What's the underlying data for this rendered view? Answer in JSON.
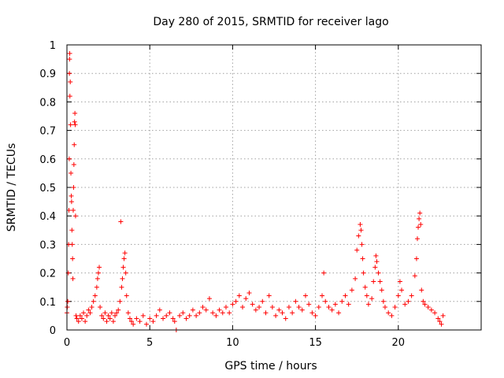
{
  "chart_data": {
    "type": "scatter",
    "title": "Day 280 of 2015, SRMTID for receiver lago",
    "xlabel": "GPS time / hours",
    "ylabel": "SRMTID / TECUs",
    "xlim": [
      0,
      25
    ],
    "ylim": [
      0,
      1
    ],
    "xticks": [
      0,
      5,
      10,
      15,
      20
    ],
    "xtick_labels": [
      "0",
      "5",
      "10",
      "15",
      "20"
    ],
    "yticks": [
      0,
      0.1,
      0.2,
      0.3,
      0.4,
      0.5,
      0.6,
      0.7,
      0.8,
      0.9,
      1
    ],
    "ytick_labels": [
      "0",
      "0.1",
      "0.2",
      "0.3",
      "0.4",
      "0.5",
      "0.6",
      "0.7",
      "0.8",
      "0.9",
      "1"
    ],
    "grid": true,
    "marker": "+",
    "series": [
      {
        "name": "SRMTID",
        "color": "#ff0000",
        "points": [
          [
            0.0,
            0.06
          ],
          [
            0.02,
            0.08
          ],
          [
            0.05,
            0.1
          ],
          [
            0.08,
            0.2
          ],
          [
            0.1,
            0.3
          ],
          [
            0.12,
            0.42
          ],
          [
            0.14,
            0.6
          ],
          [
            0.15,
            0.9
          ],
          [
            0.16,
            0.95
          ],
          [
            0.17,
            0.97
          ],
          [
            0.18,
            0.82
          ],
          [
            0.2,
            0.87
          ],
          [
            0.22,
            0.72
          ],
          [
            0.24,
            0.55
          ],
          [
            0.26,
            0.47
          ],
          [
            0.28,
            0.45
          ],
          [
            0.3,
            0.35
          ],
          [
            0.32,
            0.3
          ],
          [
            0.34,
            0.25
          ],
          [
            0.36,
            0.18
          ],
          [
            0.38,
            0.42
          ],
          [
            0.4,
            0.5
          ],
          [
            0.42,
            0.58
          ],
          [
            0.44,
            0.65
          ],
          [
            0.46,
            0.73
          ],
          [
            0.48,
            0.76
          ],
          [
            0.5,
            0.72
          ],
          [
            0.52,
            0.4
          ],
          [
            0.55,
            0.05
          ],
          [
            0.6,
            0.04
          ],
          [
            0.7,
            0.03
          ],
          [
            0.8,
            0.05
          ],
          [
            0.9,
            0.04
          ],
          [
            1.0,
            0.06
          ],
          [
            1.1,
            0.03
          ],
          [
            1.2,
            0.05
          ],
          [
            1.3,
            0.07
          ],
          [
            1.4,
            0.06
          ],
          [
            1.5,
            0.08
          ],
          [
            1.6,
            0.1
          ],
          [
            1.7,
            0.12
          ],
          [
            1.8,
            0.15
          ],
          [
            1.85,
            0.18
          ],
          [
            1.9,
            0.2
          ],
          [
            1.95,
            0.22
          ],
          [
            2.0,
            0.08
          ],
          [
            2.1,
            0.05
          ],
          [
            2.2,
            0.04
          ],
          [
            2.3,
            0.06
          ],
          [
            2.4,
            0.03
          ],
          [
            2.5,
            0.05
          ],
          [
            2.6,
            0.04
          ],
          [
            2.7,
            0.06
          ],
          [
            2.8,
            0.03
          ],
          [
            2.9,
            0.05
          ],
          [
            3.0,
            0.06
          ],
          [
            3.1,
            0.07
          ],
          [
            3.2,
            0.1
          ],
          [
            3.25,
            0.38
          ],
          [
            3.3,
            0.15
          ],
          [
            3.35,
            0.18
          ],
          [
            3.4,
            0.22
          ],
          [
            3.45,
            0.25
          ],
          [
            3.5,
            0.27
          ],
          [
            3.55,
            0.2
          ],
          [
            3.6,
            0.12
          ],
          [
            3.7,
            0.06
          ],
          [
            3.8,
            0.04
          ],
          [
            3.9,
            0.03
          ],
          [
            4.0,
            0.02
          ],
          [
            4.2,
            0.04
          ],
          [
            4.4,
            0.03
          ],
          [
            4.6,
            0.05
          ],
          [
            4.8,
            0.02
          ],
          [
            5.0,
            0.04
          ],
          [
            5.2,
            0.03
          ],
          [
            5.4,
            0.05
          ],
          [
            5.6,
            0.07
          ],
          [
            5.8,
            0.04
          ],
          [
            6.0,
            0.05
          ],
          [
            6.2,
            0.06
          ],
          [
            6.4,
            0.04
          ],
          [
            6.5,
            0.03
          ],
          [
            6.6,
            0.0
          ],
          [
            6.8,
            0.05
          ],
          [
            7.0,
            0.06
          ],
          [
            7.2,
            0.04
          ],
          [
            7.4,
            0.05
          ],
          [
            7.6,
            0.07
          ],
          [
            7.8,
            0.05
          ],
          [
            8.0,
            0.06
          ],
          [
            8.2,
            0.08
          ],
          [
            8.4,
            0.07
          ],
          [
            8.6,
            0.11
          ],
          [
            8.8,
            0.06
          ],
          [
            9.0,
            0.05
          ],
          [
            9.2,
            0.07
          ],
          [
            9.4,
            0.06
          ],
          [
            9.6,
            0.08
          ],
          [
            9.8,
            0.06
          ],
          [
            10.0,
            0.09
          ],
          [
            10.2,
            0.1
          ],
          [
            10.4,
            0.12
          ],
          [
            10.6,
            0.08
          ],
          [
            10.8,
            0.11
          ],
          [
            11.0,
            0.13
          ],
          [
            11.2,
            0.09
          ],
          [
            11.4,
            0.07
          ],
          [
            11.6,
            0.08
          ],
          [
            11.8,
            0.1
          ],
          [
            12.0,
            0.06
          ],
          [
            12.2,
            0.12
          ],
          [
            12.4,
            0.08
          ],
          [
            12.6,
            0.05
          ],
          [
            12.8,
            0.07
          ],
          [
            13.0,
            0.06
          ],
          [
            13.2,
            0.04
          ],
          [
            13.4,
            0.08
          ],
          [
            13.6,
            0.06
          ],
          [
            13.8,
            0.1
          ],
          [
            14.0,
            0.08
          ],
          [
            14.2,
            0.07
          ],
          [
            14.4,
            0.12
          ],
          [
            14.6,
            0.09
          ],
          [
            14.8,
            0.06
          ],
          [
            15.0,
            0.05
          ],
          [
            15.2,
            0.08
          ],
          [
            15.4,
            0.12
          ],
          [
            15.5,
            0.2
          ],
          [
            15.6,
            0.1
          ],
          [
            15.8,
            0.08
          ],
          [
            16.0,
            0.07
          ],
          [
            16.2,
            0.09
          ],
          [
            16.4,
            0.06
          ],
          [
            16.6,
            0.1
          ],
          [
            16.8,
            0.12
          ],
          [
            17.0,
            0.09
          ],
          [
            17.2,
            0.14
          ],
          [
            17.4,
            0.18
          ],
          [
            17.5,
            0.28
          ],
          [
            17.6,
            0.33
          ],
          [
            17.7,
            0.37
          ],
          [
            17.75,
            0.35
          ],
          [
            17.8,
            0.3
          ],
          [
            17.85,
            0.25
          ],
          [
            17.9,
            0.2
          ],
          [
            18.0,
            0.15
          ],
          [
            18.1,
            0.12
          ],
          [
            18.2,
            0.09
          ],
          [
            18.4,
            0.11
          ],
          [
            18.5,
            0.17
          ],
          [
            18.6,
            0.22
          ],
          [
            18.65,
            0.26
          ],
          [
            18.7,
            0.24
          ],
          [
            18.8,
            0.2
          ],
          [
            18.9,
            0.17
          ],
          [
            19.0,
            0.14
          ],
          [
            19.1,
            0.1
          ],
          [
            19.2,
            0.08
          ],
          [
            19.4,
            0.06
          ],
          [
            19.6,
            0.05
          ],
          [
            19.8,
            0.08
          ],
          [
            20.0,
            0.12
          ],
          [
            20.1,
            0.17
          ],
          [
            20.2,
            0.14
          ],
          [
            20.4,
            0.09
          ],
          [
            20.6,
            0.1
          ],
          [
            20.8,
            0.12
          ],
          [
            21.0,
            0.19
          ],
          [
            21.1,
            0.25
          ],
          [
            21.15,
            0.32
          ],
          [
            21.2,
            0.36
          ],
          [
            21.25,
            0.39
          ],
          [
            21.3,
            0.41
          ],
          [
            21.35,
            0.37
          ],
          [
            21.4,
            0.14
          ],
          [
            21.5,
            0.1
          ],
          [
            21.6,
            0.09
          ],
          [
            21.8,
            0.08
          ],
          [
            22.0,
            0.07
          ],
          [
            22.2,
            0.06
          ],
          [
            22.4,
            0.04
          ],
          [
            22.5,
            0.03
          ],
          [
            22.6,
            0.02
          ],
          [
            22.7,
            0.05
          ]
        ]
      }
    ]
  }
}
